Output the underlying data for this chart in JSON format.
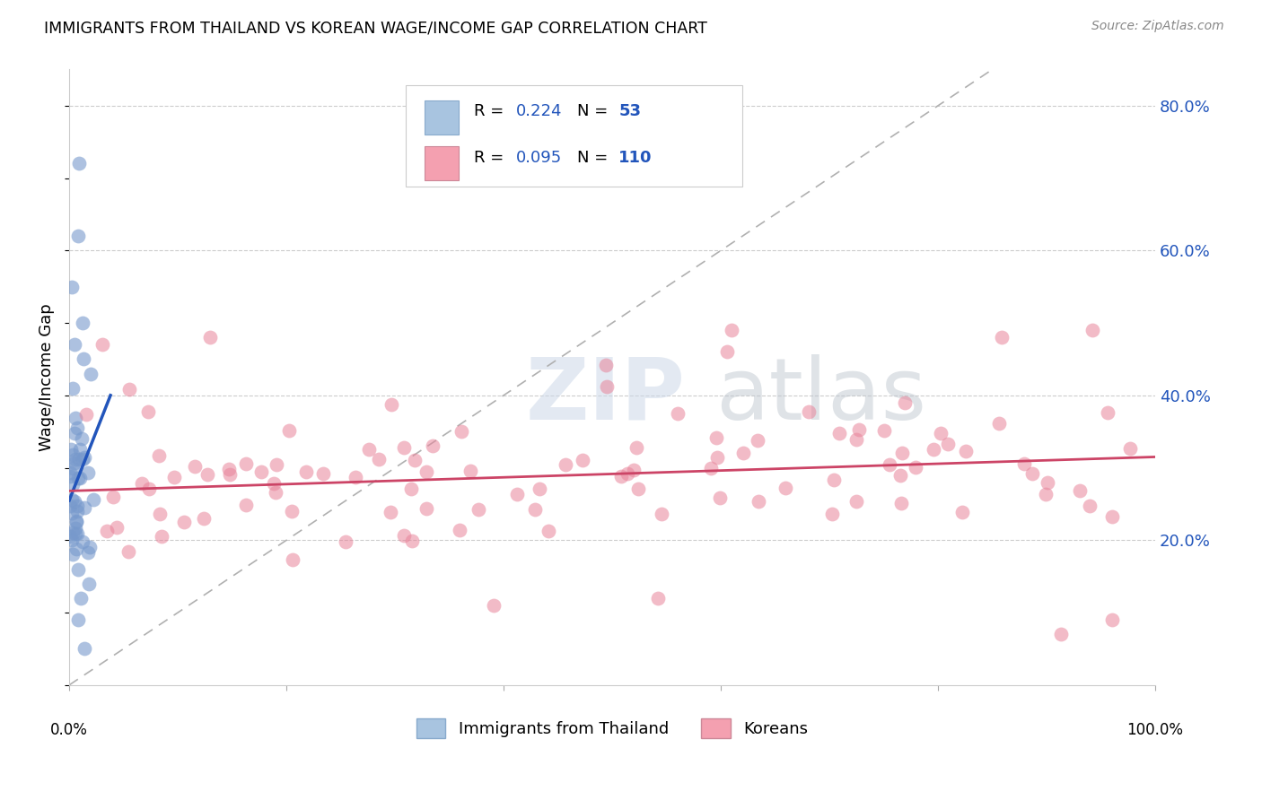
{
  "title": "IMMIGRANTS FROM THAILAND VS KOREAN WAGE/INCOME GAP CORRELATION CHART",
  "source": "Source: ZipAtlas.com",
  "ylabel": "Wage/Income Gap",
  "right_ytick_vals": [
    0.8,
    0.6,
    0.4,
    0.2
  ],
  "legend_entry1": {
    "R": "0.224",
    "N": "53",
    "color": "#a8c4e0",
    "edge": "#88aacc"
  },
  "legend_entry2": {
    "R": "0.095",
    "N": "110",
    "color": "#f4a0b0",
    "edge": "#cc8898"
  },
  "blue_scatter_color": "#7799cc",
  "pink_scatter_color": "#e8849a",
  "trend_blue": "#2255bb",
  "trend_pink": "#cc4466",
  "diagonal_color": "#b0b0b0",
  "background_color": "#ffffff",
  "grid_color": "#cccccc",
  "blue_label_color": "#2255bb",
  "xlim": [
    0.0,
    1.0
  ],
  "ylim": [
    0.0,
    0.85
  ],
  "thai_trend_x": [
    0.0,
    0.038
  ],
  "thai_trend_y": [
    0.255,
    0.4
  ],
  "korean_trend_x": [
    0.0,
    1.0
  ],
  "korean_trend_y": [
    0.268,
    0.315
  ]
}
